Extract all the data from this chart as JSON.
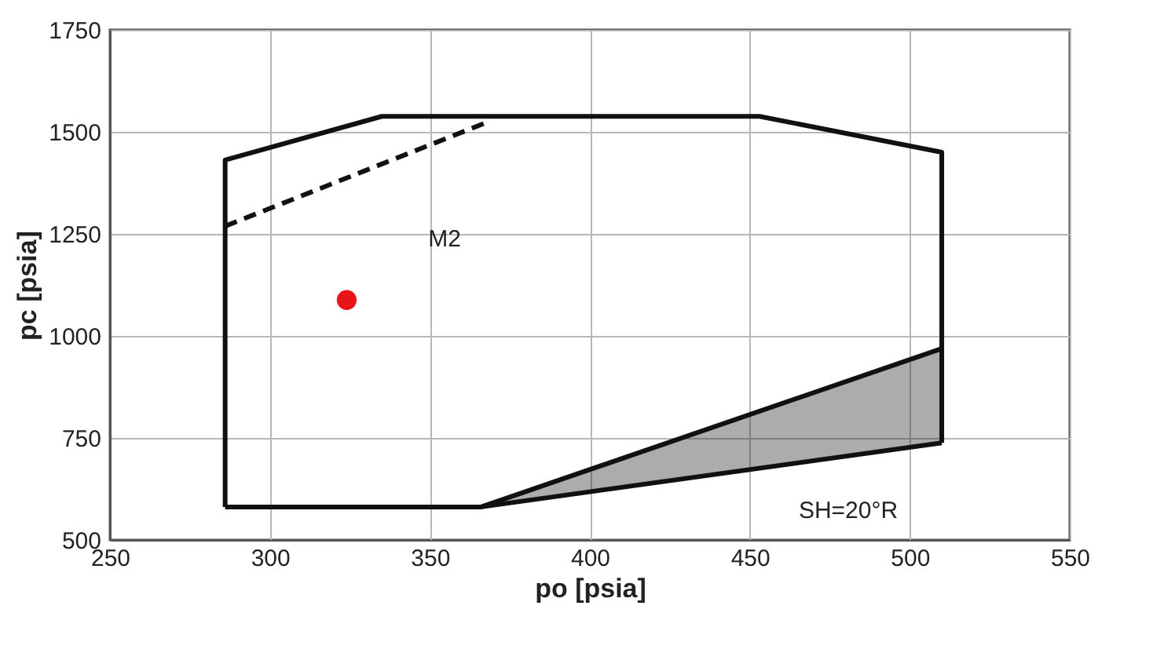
{
  "chart_data": {
    "type": "line",
    "xlabel": "po [psia]",
    "ylabel": "pc [psia]",
    "xlim": [
      250,
      550
    ],
    "xticks": [
      250,
      300,
      350,
      400,
      450,
      500,
      550
    ],
    "ylim": [
      500,
      1750
    ],
    "yticks": [
      500,
      750,
      1000,
      1250,
      1500,
      1750
    ],
    "grid": true,
    "marker": "none",
    "series": [
      {
        "color": "#111111",
        "line_style": "solid",
        "x": [
          286,
          286,
          335,
          453,
          510,
          510
        ],
        "values": [
          581,
          1431,
          1538,
          1538,
          1450,
          738
        ]
      },
      {
        "color": "#111111",
        "line_style": "solid",
        "x": [
          286,
          366,
          510
        ],
        "values": [
          581,
          581,
          738
        ]
      },
      {
        "color": "#111111",
        "line_style": "dashed",
        "x": [
          286,
          369
        ],
        "values": [
          1269,
          1527
        ]
      },
      {
        "color": "#111111",
        "line_style": "solid",
        "x": [
          366,
          510
        ],
        "values": [
          581,
          969
        ],
        "lower": [
          581,
          738
        ],
        "upper": [
          581,
          969
        ]
      },
      {
        "type": "scatter",
        "color": "#e8141b",
        "marker": "circle",
        "x": [
          324
        ],
        "values": [
          1088
        ]
      }
    ],
    "annotations": [
      "M2",
      "SH=20°R"
    ]
  }
}
